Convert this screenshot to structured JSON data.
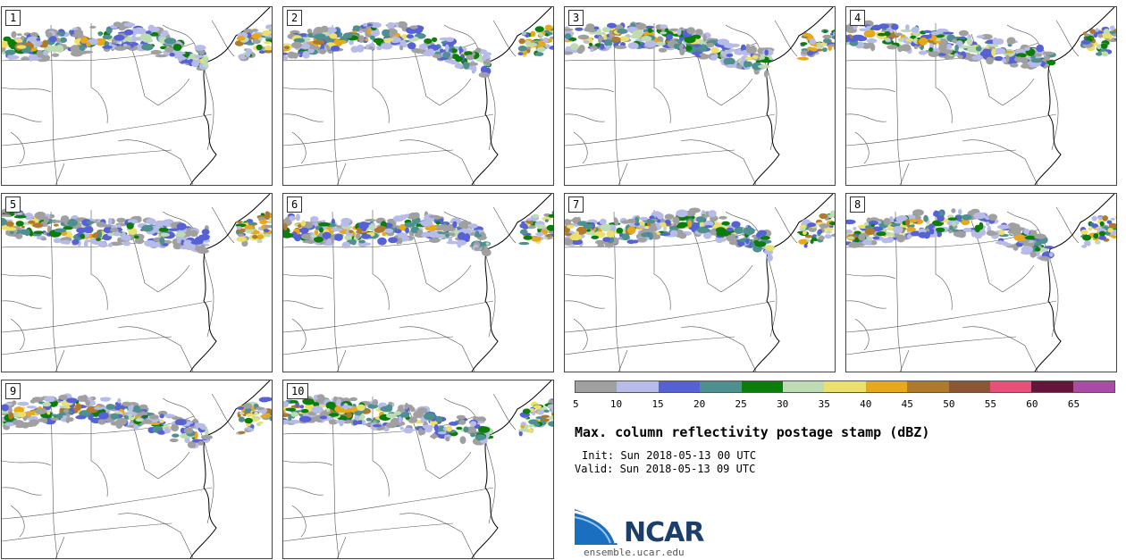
{
  "panels": [
    {
      "label": "1"
    },
    {
      "label": "2"
    },
    {
      "label": "3"
    },
    {
      "label": "4"
    },
    {
      "label": "5"
    },
    {
      "label": "6"
    },
    {
      "label": "7"
    },
    {
      "label": "8"
    },
    {
      "label": "9"
    },
    {
      "label": "10"
    }
  ],
  "colorbar": {
    "ticks": [
      "5",
      "10",
      "15",
      "20",
      "25",
      "30",
      "35",
      "40",
      "45",
      "50",
      "55",
      "60",
      "65"
    ],
    "colors": [
      "#a0a0a0",
      "#b6bbe8",
      "#5561d4",
      "#4e8f90",
      "#0a7d0a",
      "#bedcb4",
      "#ece06c",
      "#e8a81c",
      "#b07a2c",
      "#8a5634",
      "#e8507a",
      "#64163a",
      "#aa4ca6"
    ]
  },
  "title": "Max. column reflectivity postage stamp (dBZ)",
  "init": "Init: Sun 2018-05-13 00 UTC",
  "valid": "Valid: Sun 2018-05-13 09 UTC",
  "logo": {
    "name": "NCAR",
    "url": "ensemble.ucar.edu",
    "icon": "ncar-logo-icon"
  }
}
